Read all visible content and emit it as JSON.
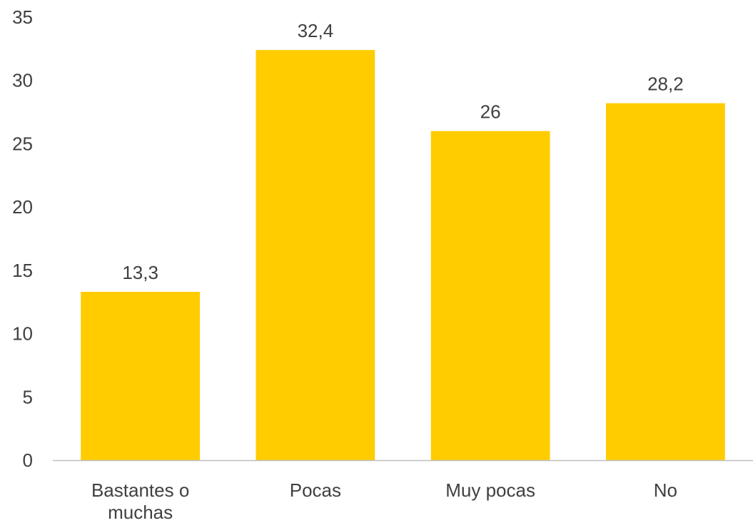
{
  "chart_data": {
    "type": "bar",
    "categories": [
      [
        "Bastantes o",
        "muchas"
      ],
      [
        "Pocas"
      ],
      [
        "Muy pocas"
      ],
      [
        "No"
      ]
    ],
    "values": [
      13.3,
      32.4,
      26,
      28.2
    ],
    "data_labels": [
      "13,3",
      "32,4",
      "26",
      "28,2"
    ],
    "y_ticks": [
      "0",
      "5",
      "10",
      "15",
      "20",
      "25",
      "30",
      "35"
    ],
    "ylim": [
      0,
      35
    ],
    "grid": false,
    "legend": "none",
    "bar_color": "#FFCC00",
    "axis_color": "#BFBFBF",
    "text_color": "#404040"
  }
}
